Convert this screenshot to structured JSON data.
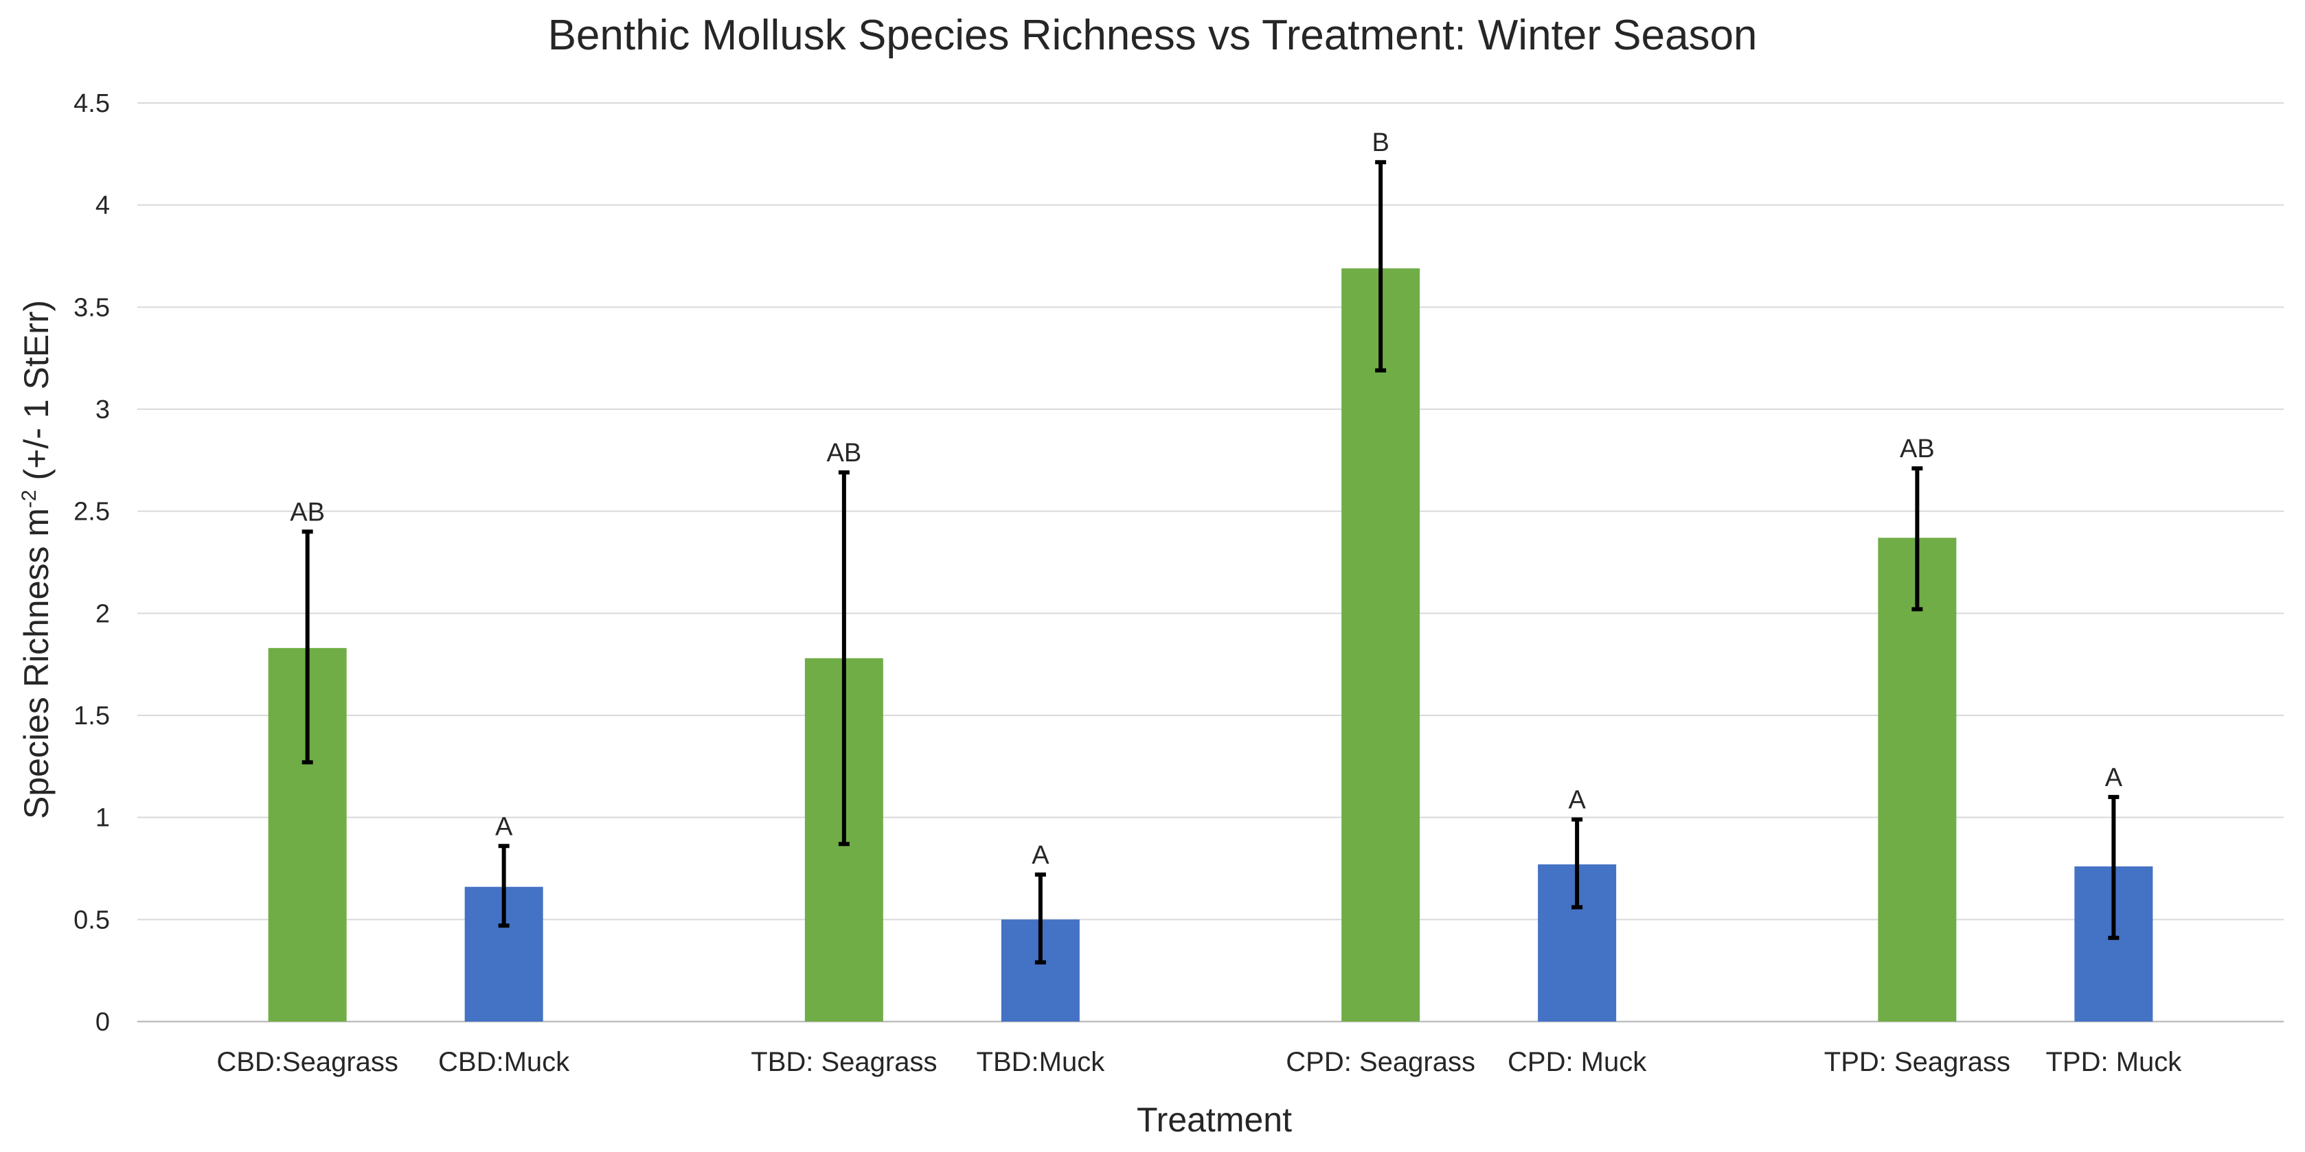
{
  "chart_data": {
    "type": "bar",
    "title": "Benthic Mollusk Species Richness vs Treatment: Winter Season",
    "xlabel": "Treatment",
    "ylabel": {
      "main": "Species Richness m",
      "superscript": "-2",
      "suffix": " (+/- 1 StErr)"
    },
    "ylim": [
      0,
      4.5
    ],
    "yticks": [
      "0",
      "0.5",
      "1",
      "1.5",
      "2",
      "2.5",
      "3",
      "3.5",
      "4",
      "4.5"
    ],
    "grid": true,
    "colors": {
      "seagrass": "#70ad47",
      "muck": "#4472c4"
    },
    "categories": [
      {
        "label": "CBD:Seagrass",
        "group": 0,
        "type": "seagrass",
        "value": 1.83,
        "err_low": 1.27,
        "err_high": 2.4,
        "letter": "AB"
      },
      {
        "label": "CBD:Muck",
        "group": 0,
        "type": "muck",
        "value": 0.66,
        "err_low": 0.47,
        "err_high": 0.86,
        "letter": "A"
      },
      {
        "label": "TBD: Seagrass",
        "group": 1,
        "type": "seagrass",
        "value": 1.78,
        "err_low": 0.87,
        "err_high": 2.69,
        "letter": "AB"
      },
      {
        "label": "TBD:Muck",
        "group": 1,
        "type": "muck",
        "value": 0.5,
        "err_low": 0.29,
        "err_high": 0.72,
        "letter": "A"
      },
      {
        "label": "CPD: Seagrass",
        "group": 2,
        "type": "seagrass",
        "value": 3.69,
        "err_low": 3.19,
        "err_high": 4.21,
        "letter": "B"
      },
      {
        "label": "CPD: Muck",
        "group": 2,
        "type": "muck",
        "value": 0.77,
        "err_low": 0.56,
        "err_high": 0.99,
        "letter": "A"
      },
      {
        "label": "TPD: Seagrass",
        "group": 3,
        "type": "seagrass",
        "value": 2.37,
        "err_low": 2.02,
        "err_high": 2.71,
        "letter": "AB"
      },
      {
        "label": "TPD: Muck",
        "group": 3,
        "type": "muck",
        "value": 0.76,
        "err_low": 0.41,
        "err_high": 1.1,
        "letter": "A"
      }
    ]
  }
}
